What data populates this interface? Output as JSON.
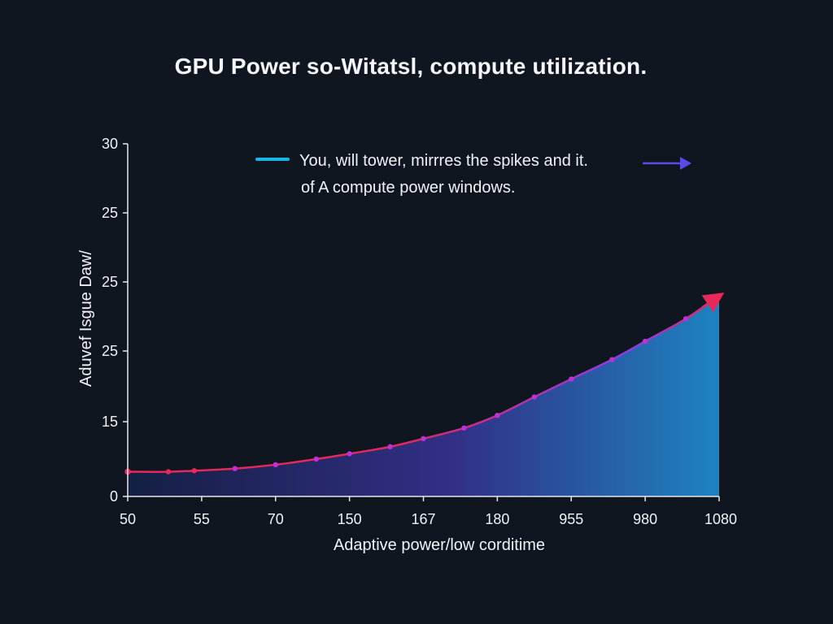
{
  "chart_data": {
    "type": "area",
    "title": "GPU Power so-Witatsl, compute utilization.",
    "xlabel": "Adaptive power/low corditime",
    "ylabel": "Aduvef Isgue Daw/",
    "x_tick_labels": [
      "50",
      "55",
      "70",
      "150",
      "167",
      "180",
      "955",
      "980",
      "1080"
    ],
    "y_tick_labels": [
      "0",
      "15",
      "25",
      "25",
      "25",
      "30"
    ],
    "grid": false,
    "annotation": {
      "line1": "You, will tower, mirrres the spikes and it.",
      "line2": "of A compute power windows."
    },
    "series": [
      {
        "x_index": [
          0,
          0.55,
          0.9,
          1.45,
          2.0,
          2.55,
          3.0,
          3.55,
          4.0,
          4.55,
          5.0,
          5.5,
          6.0,
          6.55,
          7.0,
          7.55,
          8.0
        ],
        "values": [
          7.0,
          7.0,
          7.3,
          7.9,
          9.0,
          10.6,
          12.1,
          14.1,
          16.4,
          19.4,
          23.0,
          28.2,
          33.3,
          38.8,
          44.0,
          50.4,
          57.0
        ],
        "value_scale": "axis_fraction_percent"
      }
    ],
    "colors": {
      "line_start": "#e8275a",
      "line_mid": "#8a3cf0",
      "area_left": "#141f43",
      "area_mid": "#322f86",
      "area_right": "#1e83c0",
      "marker": "#c02fd8",
      "legend_swatch": "#18b6e6",
      "arrow": "#5a4be8"
    }
  }
}
